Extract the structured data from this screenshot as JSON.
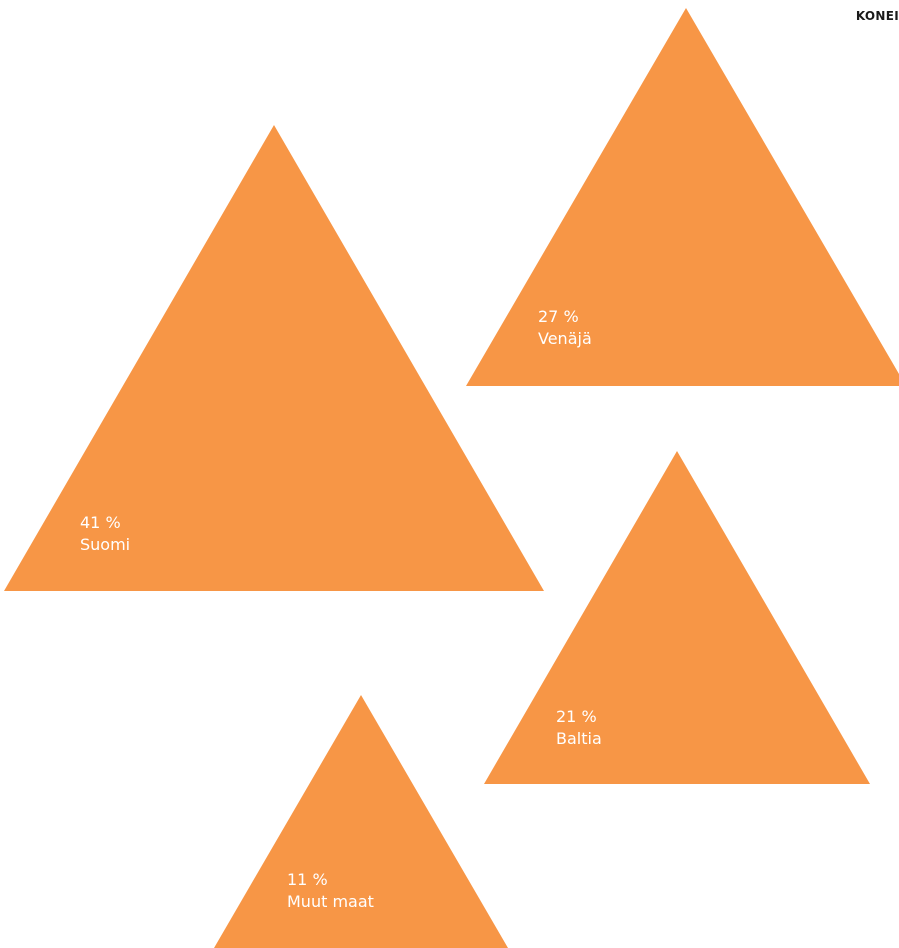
{
  "header": {
    "brand": "KONEI"
  },
  "chart_data": {
    "type": "proportional-triangles",
    "unit": "%",
    "fill_color": "#F79646",
    "label_color": "#FFFFFF",
    "items": [
      {
        "name": "Suomi",
        "value": 41,
        "value_label": "41 %"
      },
      {
        "name": "Venäjä",
        "value": 27,
        "value_label": "27 %"
      },
      {
        "name": "Baltia",
        "value": 21,
        "value_label": "21 %"
      },
      {
        "name": "Muut maat",
        "value": 11,
        "value_label": "11 %"
      }
    ]
  }
}
